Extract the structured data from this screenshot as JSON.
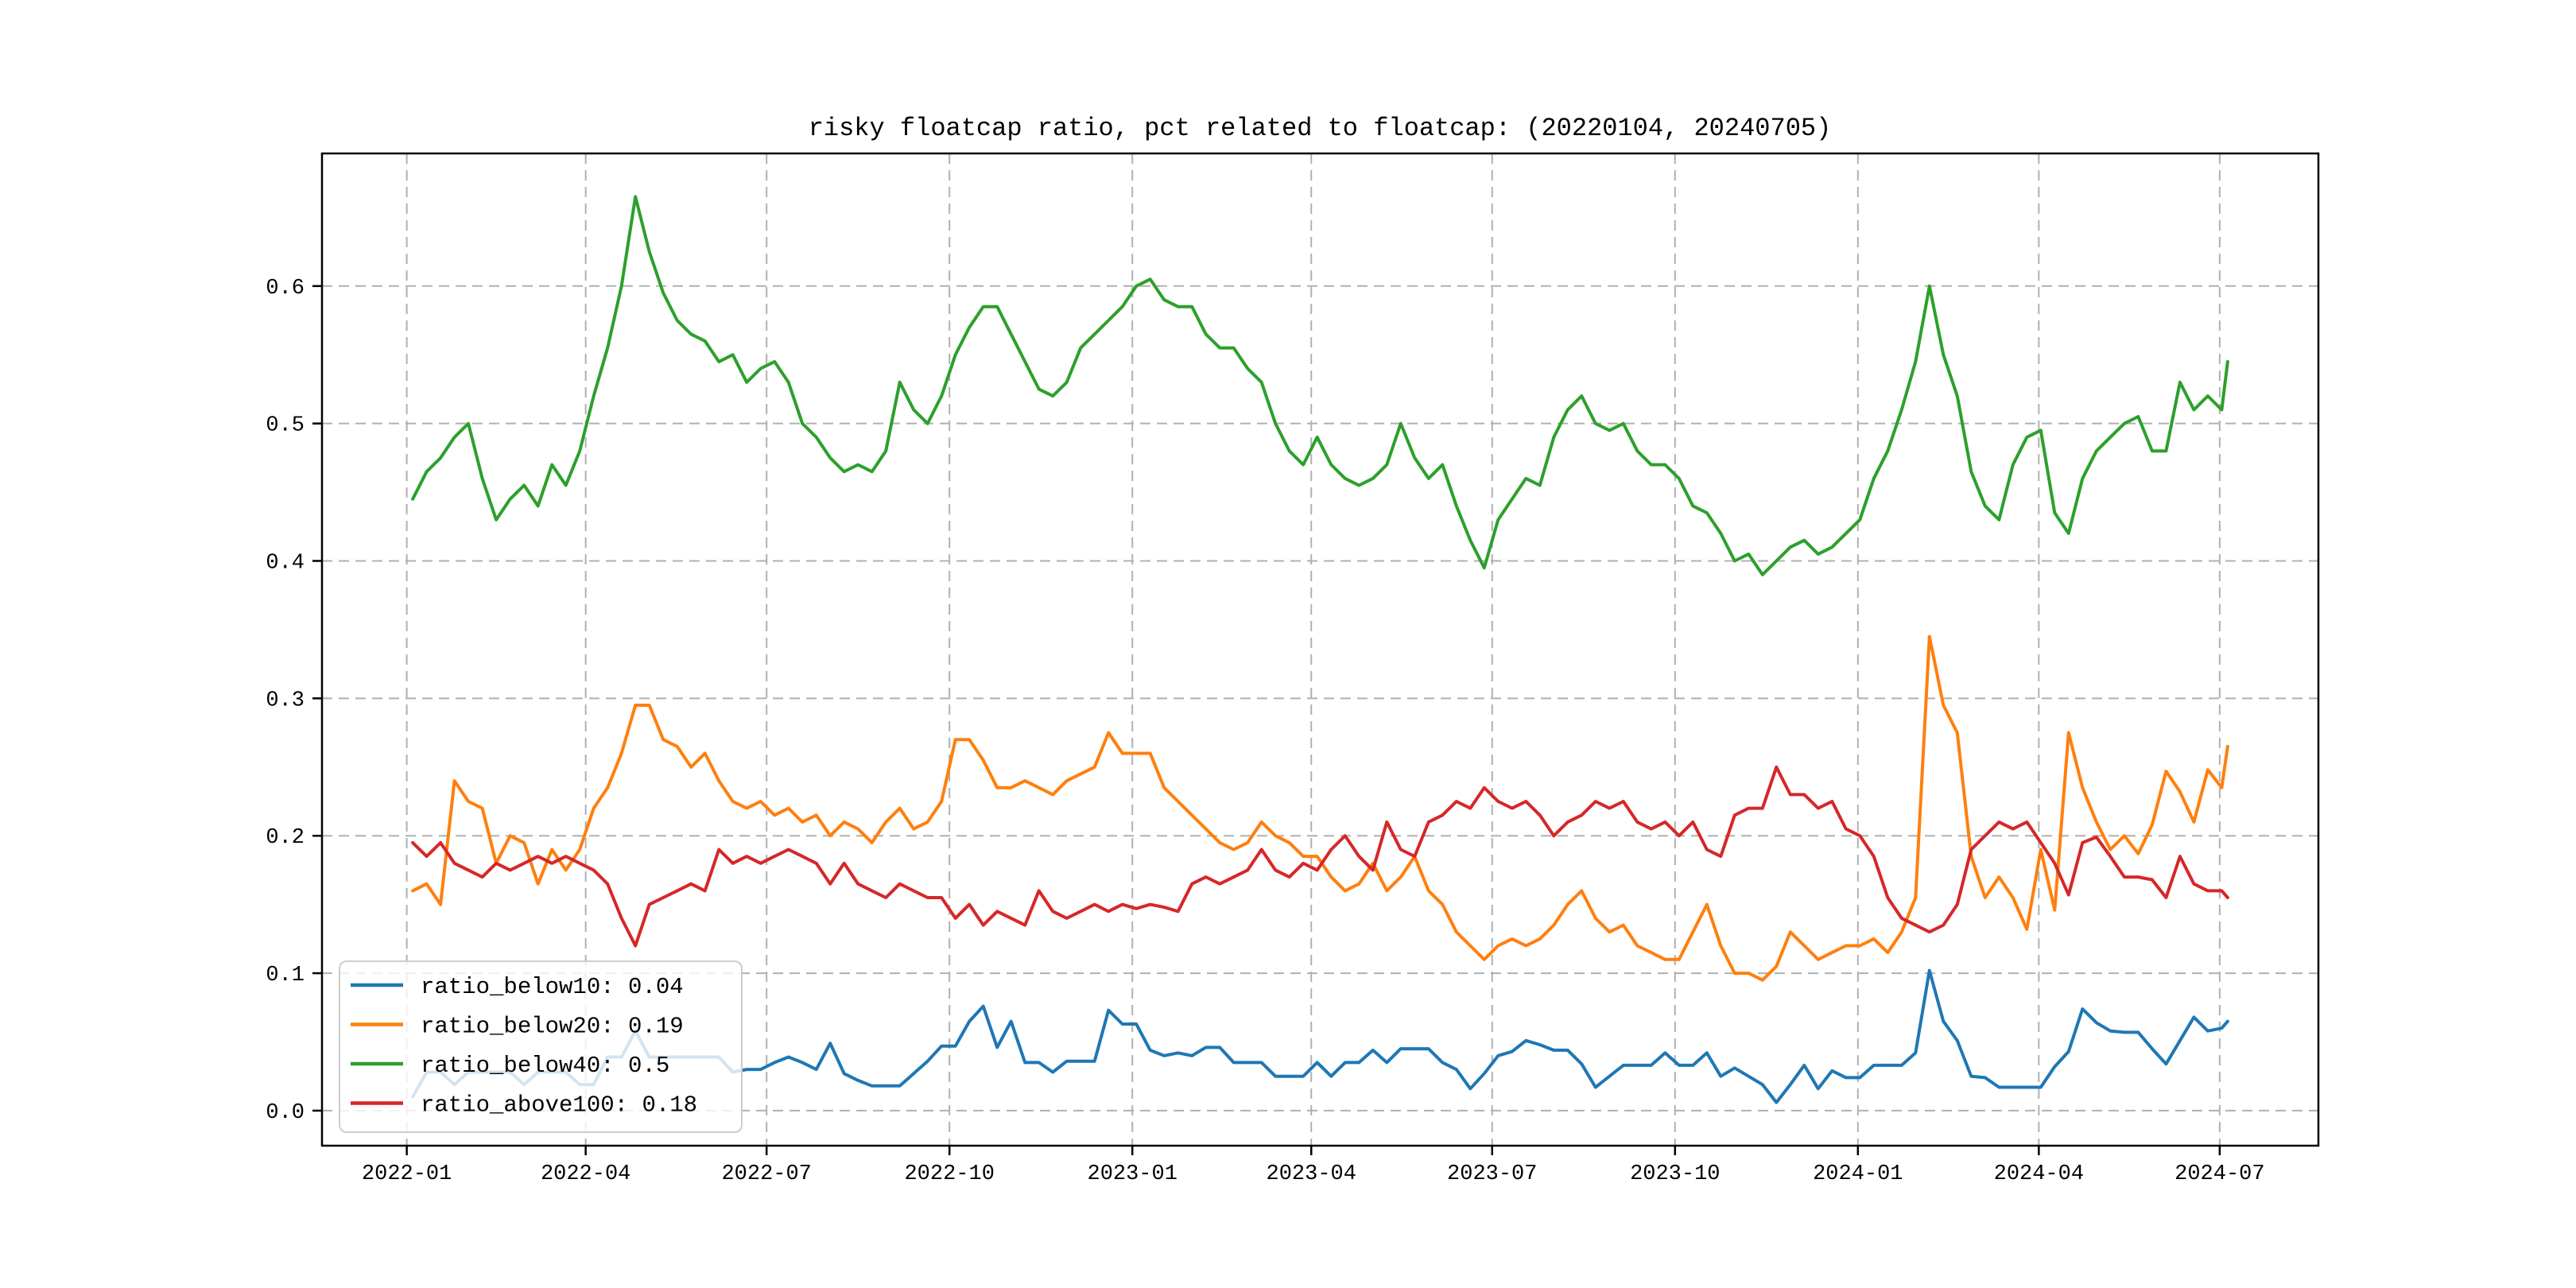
{
  "figure": {
    "background": "#ffffff",
    "plot_border_color": "#000000",
    "grid_color": "#b0b0b0"
  },
  "chart_data": {
    "type": "line",
    "title": "risky floatcap ratio, pct related to floatcap: (20220104, 20240705)",
    "xlabel": "",
    "ylabel": "",
    "grid": {
      "on": true,
      "style": "dashed",
      "color": "#b0b0b0"
    },
    "x_axis": {
      "start_date": "2022-01-04",
      "end_date": "2024-07-05",
      "span_days": 913,
      "margin_days": 45.65,
      "tick_labels": [
        "2022-01",
        "2022-04",
        "2022-07",
        "2022-10",
        "2023-01",
        "2023-04",
        "2023-07",
        "2023-10",
        "2024-01",
        "2024-04",
        "2024-07"
      ],
      "tick_day_offsets": [
        -3,
        87,
        178,
        270,
        362,
        452,
        543,
        635,
        727,
        818,
        909
      ]
    },
    "y_axis": {
      "tick_labels": [
        "0.0",
        "0.1",
        "0.2",
        "0.3",
        "0.4",
        "0.5",
        "0.6"
      ],
      "tick_values": [
        0.0,
        0.1,
        0.2,
        0.3,
        0.4,
        0.5,
        0.6
      ],
      "ylim": [
        -0.0255,
        0.6965
      ]
    },
    "legend": {
      "position": "lower left",
      "border_color": "#cccccc",
      "fill": "rgba(255,255,255,0.8)",
      "entries": [
        {
          "label": "ratio_below10: 0.04",
          "color": "#1f77b4"
        },
        {
          "label": "ratio_below20: 0.19",
          "color": "#ff7f0e"
        },
        {
          "label": "ratio_below40: 0.5",
          "color": "#2ca02c"
        },
        {
          "label": "ratio_above100: 0.18",
          "color": "#d62728"
        }
      ]
    },
    "sampling_note": "values sampled ~weekly (every 7 days) from 2022-01-04; final point at day 913 (2024-07-05)",
    "step_days": 7,
    "last_day": 913,
    "series": [
      {
        "name": "ratio_below10",
        "color": "#1f77b4",
        "values": [
          0.01,
          0.028,
          0.028,
          0.019,
          0.028,
          0.028,
          0.028,
          0.028,
          0.019,
          0.028,
          0.028,
          0.028,
          0.019,
          0.019,
          0.039,
          0.039,
          0.058,
          0.039,
          0.039,
          0.039,
          0.039,
          0.039,
          0.039,
          0.028,
          0.03,
          0.03,
          0.035,
          0.039,
          0.035,
          0.03,
          0.049,
          0.027,
          0.022,
          0.018,
          0.018,
          0.018,
          0.027,
          0.036,
          0.047,
          0.047,
          0.065,
          0.076,
          0.046,
          0.065,
          0.035,
          0.035,
          0.028,
          0.036,
          0.036,
          0.036,
          0.073,
          0.063,
          0.063,
          0.044,
          0.04,
          0.042,
          0.04,
          0.046,
          0.046,
          0.035,
          0.035,
          0.035,
          0.025,
          0.025,
          0.025,
          0.035,
          0.025,
          0.035,
          0.035,
          0.044,
          0.035,
          0.045,
          0.045,
          0.045,
          0.035,
          0.03,
          0.016,
          0.027,
          0.04,
          0.043,
          0.051,
          0.048,
          0.044,
          0.044,
          0.034,
          0.017,
          0.025,
          0.033,
          0.033,
          0.033,
          0.042,
          0.033,
          0.033,
          0.042,
          0.025,
          0.031,
          0.025,
          0.019,
          0.006,
          0.019,
          0.033,
          0.016,
          0.029,
          0.024,
          0.024,
          0.033,
          0.033,
          0.033,
          0.042,
          0.102,
          0.065,
          0.051,
          0.025,
          0.024,
          0.017,
          0.017,
          0.017,
          0.017,
          0.032,
          0.043,
          0.074,
          0.064,
          0.058,
          0.057,
          0.057,
          0.045,
          0.034,
          0.051,
          0.068,
          0.058,
          0.06,
          0.065
        ]
      },
      {
        "name": "ratio_below20",
        "color": "#ff7f0e",
        "values": [
          0.16,
          0.165,
          0.15,
          0.24,
          0.225,
          0.22,
          0.18,
          0.2,
          0.195,
          0.165,
          0.19,
          0.175,
          0.19,
          0.22,
          0.235,
          0.26,
          0.295,
          0.295,
          0.27,
          0.265,
          0.25,
          0.26,
          0.24,
          0.225,
          0.22,
          0.225,
          0.215,
          0.22,
          0.21,
          0.215,
          0.2,
          0.21,
          0.205,
          0.195,
          0.21,
          0.22,
          0.205,
          0.21,
          0.225,
          0.27,
          0.27,
          0.255,
          0.235,
          0.235,
          0.24,
          0.235,
          0.23,
          0.24,
          0.245,
          0.25,
          0.275,
          0.26,
          0.26,
          0.26,
          0.235,
          0.225,
          0.215,
          0.205,
          0.195,
          0.19,
          0.195,
          0.21,
          0.2,
          0.195,
          0.185,
          0.185,
          0.17,
          0.16,
          0.165,
          0.18,
          0.16,
          0.17,
          0.185,
          0.16,
          0.15,
          0.13,
          0.12,
          0.11,
          0.12,
          0.125,
          0.12,
          0.125,
          0.135,
          0.15,
          0.16,
          0.14,
          0.13,
          0.135,
          0.12,
          0.115,
          0.11,
          0.11,
          0.13,
          0.15,
          0.12,
          0.1,
          0.1,
          0.095,
          0.105,
          0.13,
          0.12,
          0.11,
          0.115,
          0.12,
          0.12,
          0.125,
          0.115,
          0.13,
          0.155,
          0.345,
          0.295,
          0.275,
          0.185,
          0.155,
          0.17,
          0.155,
          0.132,
          0.19,
          0.146,
          0.275,
          0.235,
          0.21,
          0.19,
          0.2,
          0.187,
          0.208,
          0.247,
          0.232,
          0.21,
          0.248,
          0.235,
          0.265
        ]
      },
      {
        "name": "ratio_below40",
        "color": "#2ca02c",
        "values": [
          0.445,
          0.465,
          0.475,
          0.49,
          0.5,
          0.46,
          0.43,
          0.445,
          0.455,
          0.44,
          0.47,
          0.455,
          0.48,
          0.52,
          0.555,
          0.6,
          0.665,
          0.625,
          0.595,
          0.575,
          0.565,
          0.56,
          0.545,
          0.55,
          0.53,
          0.54,
          0.545,
          0.53,
          0.5,
          0.49,
          0.475,
          0.465,
          0.47,
          0.465,
          0.48,
          0.53,
          0.51,
          0.5,
          0.52,
          0.55,
          0.57,
          0.585,
          0.585,
          0.565,
          0.545,
          0.525,
          0.52,
          0.53,
          0.555,
          0.565,
          0.575,
          0.585,
          0.6,
          0.605,
          0.59,
          0.585,
          0.585,
          0.565,
          0.555,
          0.555,
          0.54,
          0.53,
          0.5,
          0.48,
          0.47,
          0.49,
          0.47,
          0.46,
          0.455,
          0.46,
          0.47,
          0.5,
          0.475,
          0.46,
          0.47,
          0.44,
          0.415,
          0.395,
          0.43,
          0.445,
          0.46,
          0.455,
          0.49,
          0.51,
          0.52,
          0.5,
          0.495,
          0.5,
          0.48,
          0.47,
          0.47,
          0.46,
          0.44,
          0.435,
          0.42,
          0.4,
          0.405,
          0.39,
          0.4,
          0.41,
          0.415,
          0.405,
          0.41,
          0.42,
          0.43,
          0.46,
          0.48,
          0.51,
          0.545,
          0.6,
          0.55,
          0.52,
          0.465,
          0.44,
          0.43,
          0.47,
          0.49,
          0.495,
          0.435,
          0.42,
          0.46,
          0.48,
          0.49,
          0.5,
          0.505,
          0.48,
          0.48,
          0.53,
          0.51,
          0.52,
          0.51,
          0.545
        ]
      },
      {
        "name": "ratio_above100",
        "color": "#d62728",
        "values": [
          0.195,
          0.185,
          0.195,
          0.18,
          0.175,
          0.17,
          0.18,
          0.175,
          0.18,
          0.185,
          0.18,
          0.185,
          0.18,
          0.175,
          0.165,
          0.14,
          0.12,
          0.15,
          0.155,
          0.16,
          0.165,
          0.16,
          0.19,
          0.18,
          0.185,
          0.18,
          0.185,
          0.19,
          0.185,
          0.18,
          0.165,
          0.18,
          0.165,
          0.16,
          0.155,
          0.165,
          0.16,
          0.155,
          0.155,
          0.14,
          0.15,
          0.135,
          0.145,
          0.14,
          0.135,
          0.16,
          0.145,
          0.14,
          0.145,
          0.15,
          0.145,
          0.15,
          0.147,
          0.15,
          0.148,
          0.145,
          0.165,
          0.17,
          0.165,
          0.17,
          0.175,
          0.19,
          0.175,
          0.17,
          0.18,
          0.175,
          0.19,
          0.2,
          0.185,
          0.175,
          0.21,
          0.19,
          0.185,
          0.21,
          0.215,
          0.225,
          0.22,
          0.235,
          0.225,
          0.22,
          0.225,
          0.215,
          0.2,
          0.21,
          0.215,
          0.225,
          0.22,
          0.225,
          0.21,
          0.205,
          0.21,
          0.2,
          0.21,
          0.19,
          0.185,
          0.215,
          0.22,
          0.22,
          0.25,
          0.23,
          0.23,
          0.22,
          0.225,
          0.205,
          0.2,
          0.185,
          0.155,
          0.14,
          0.135,
          0.13,
          0.135,
          0.15,
          0.19,
          0.2,
          0.21,
          0.205,
          0.21,
          0.195,
          0.18,
          0.157,
          0.195,
          0.199,
          0.185,
          0.17,
          0.17,
          0.168,
          0.155,
          0.185,
          0.165,
          0.16,
          0.16,
          0.155
        ]
      }
    ]
  }
}
